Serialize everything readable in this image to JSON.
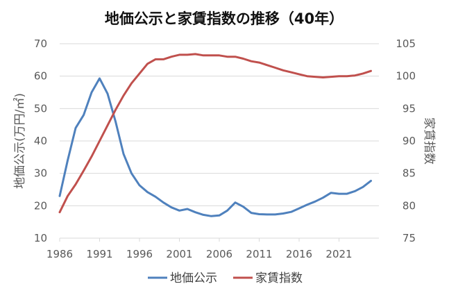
{
  "chart_data": {
    "type": "line",
    "title": "地価公示と家賃指数の推移（40年）",
    "x": [
      1986,
      1987,
      1988,
      1989,
      1990,
      1991,
      1992,
      1993,
      1994,
      1995,
      1996,
      1997,
      1998,
      1999,
      2000,
      2001,
      2002,
      2003,
      2004,
      2005,
      2006,
      2007,
      2008,
      2009,
      2010,
      2011,
      2012,
      2013,
      2014,
      2015,
      2016,
      2017,
      2018,
      2019,
      2020,
      2021,
      2022,
      2023,
      2024,
      2025
    ],
    "x_ticks": [
      "1986",
      "1991",
      "1996",
      "2001",
      "2006",
      "2011",
      "2016",
      "2021"
    ],
    "x_tick_values": [
      1986,
      1991,
      1996,
      2001,
      2006,
      2011,
      2016,
      2021
    ],
    "xlim": [
      1986,
      2026
    ],
    "ylabel_left": "地価公示(万円/㎡)",
    "ylabel_right": "家賃指数",
    "ylim_left": [
      10,
      70
    ],
    "ylim_right": [
      75,
      105
    ],
    "yticks_left": [
      "10",
      "20",
      "30",
      "40",
      "50",
      "60",
      "70"
    ],
    "yticks_right": [
      "75",
      "80",
      "85",
      "90",
      "95",
      "100",
      "105"
    ],
    "legend_position": "bottom",
    "series": [
      {
        "name": "地価公示",
        "axis": "left",
        "color": "#4F81BD",
        "values": [
          23,
          34,
          44,
          48,
          55,
          59.3,
          54.6,
          46,
          36,
          30,
          26.3,
          24.2,
          22.8,
          21,
          19.5,
          18.5,
          19,
          18,
          17.2,
          16.8,
          17,
          18.5,
          21,
          19.7,
          17.8,
          17.4,
          17.3,
          17.3,
          17.6,
          18.1,
          19.2,
          20.3,
          21.3,
          22.5,
          24,
          23.7,
          23.7,
          24.5,
          25.8,
          27.7
        ]
      },
      {
        "name": "家賃指数",
        "axis": "right",
        "color": "#C0504D",
        "values": [
          79,
          81.5,
          83.3,
          85.4,
          87.6,
          90,
          92.4,
          94.8,
          97,
          98.9,
          100.4,
          101.9,
          102.6,
          102.6,
          103,
          103.3,
          103.3,
          103.4,
          103.2,
          103.2,
          103.2,
          103,
          103,
          102.7,
          102.3,
          102.1,
          101.7,
          101.3,
          100.9,
          100.6,
          100.3,
          100,
          99.9,
          99.8,
          99.9,
          100,
          100,
          100.1,
          100.4,
          100.8
        ]
      }
    ]
  }
}
